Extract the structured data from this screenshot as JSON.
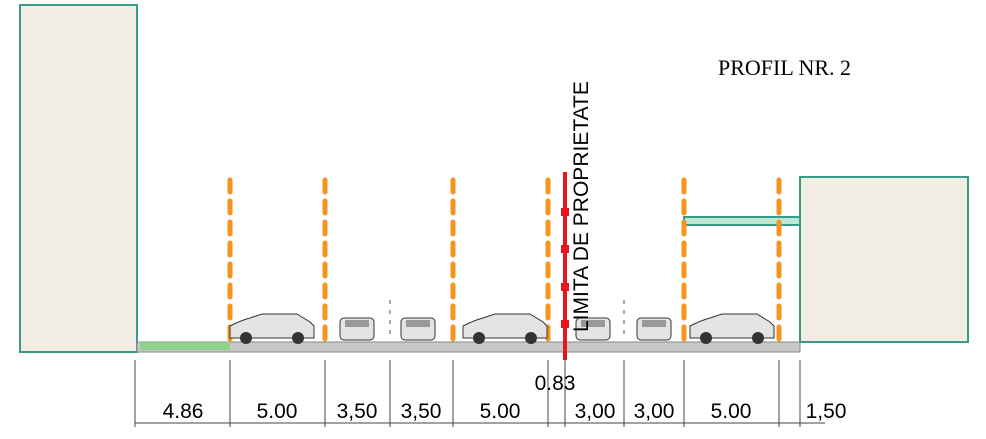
{
  "profile": {
    "title": "PROFIL NR. 2",
    "property_limit": "LIMITA DE PROPRIETATE",
    "dimensions": [
      "4.86",
      "5.00",
      "3,50",
      "3,50",
      "5.00",
      "0.83",
      "3,00",
      "3,00",
      "5.00",
      "1,50"
    ]
  }
}
